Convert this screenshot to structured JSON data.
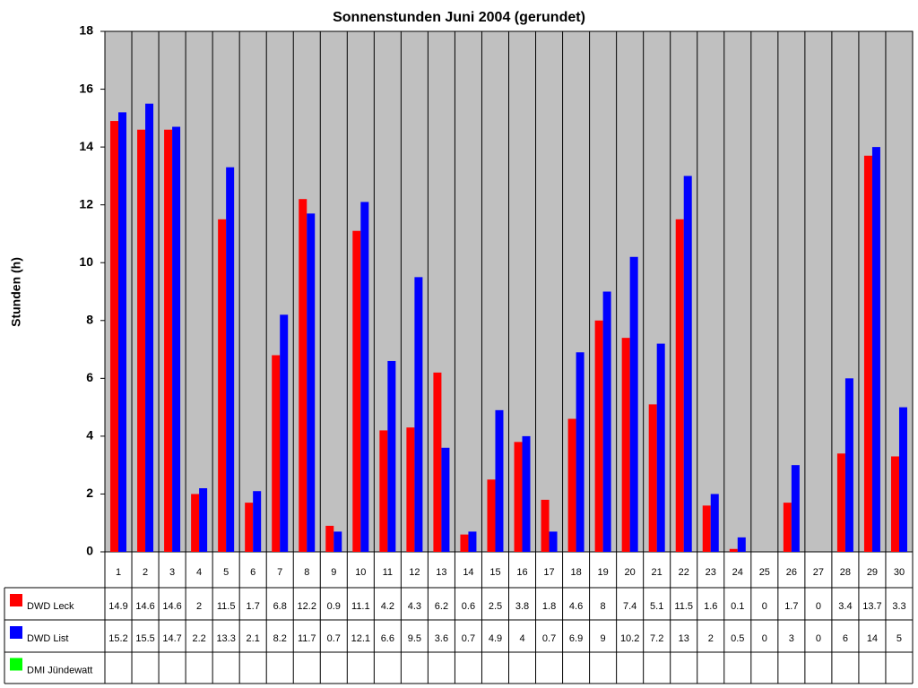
{
  "chart_data": {
    "type": "bar",
    "title": "Sonnenstunden Juni 2004 (gerundet)",
    "y_label": "Stunden (h)",
    "categories": [
      "1",
      "2",
      "3",
      "4",
      "5",
      "6",
      "7",
      "8",
      "9",
      "10",
      "11",
      "12",
      "13",
      "14",
      "15",
      "16",
      "17",
      "18",
      "19",
      "20",
      "21",
      "22",
      "23",
      "24",
      "25",
      "26",
      "27",
      "28",
      "29",
      "30"
    ],
    "series": [
      {
        "name": "DWD Leck",
        "color": "#ff0000",
        "values": [
          14.9,
          14.6,
          14.6,
          2,
          11.5,
          1.7,
          6.8,
          12.2,
          0.9,
          11.1,
          4.2,
          4.3,
          6.2,
          0.6,
          2.5,
          3.8,
          1.8,
          4.6,
          8,
          7.4,
          5.1,
          11.5,
          1.6,
          0.1,
          0,
          1.7,
          0,
          3.4,
          13.7,
          3.3
        ]
      },
      {
        "name": "DWD List",
        "color": "#0000ff",
        "values": [
          15.2,
          15.5,
          14.7,
          2.2,
          13.3,
          2.1,
          8.2,
          11.7,
          0.7,
          12.1,
          6.6,
          9.5,
          3.6,
          0.7,
          4.9,
          4,
          0.7,
          6.9,
          9,
          10.2,
          7.2,
          13,
          2,
          0.5,
          0,
          3,
          0,
          6,
          14,
          5
        ]
      },
      {
        "name": "DMI Jündewatt",
        "color": "#00ff00",
        "values": [
          null,
          null,
          null,
          null,
          null,
          null,
          null,
          null,
          null,
          null,
          null,
          null,
          null,
          null,
          null,
          null,
          null,
          null,
          null,
          null,
          null,
          null,
          null,
          null,
          null,
          null,
          null,
          null,
          null,
          null
        ]
      }
    ],
    "ylim": [
      0,
      18
    ],
    "yticks": [
      0,
      2,
      4,
      6,
      8,
      10,
      12,
      14,
      16,
      18
    ],
    "background": "#c0c0c0"
  }
}
